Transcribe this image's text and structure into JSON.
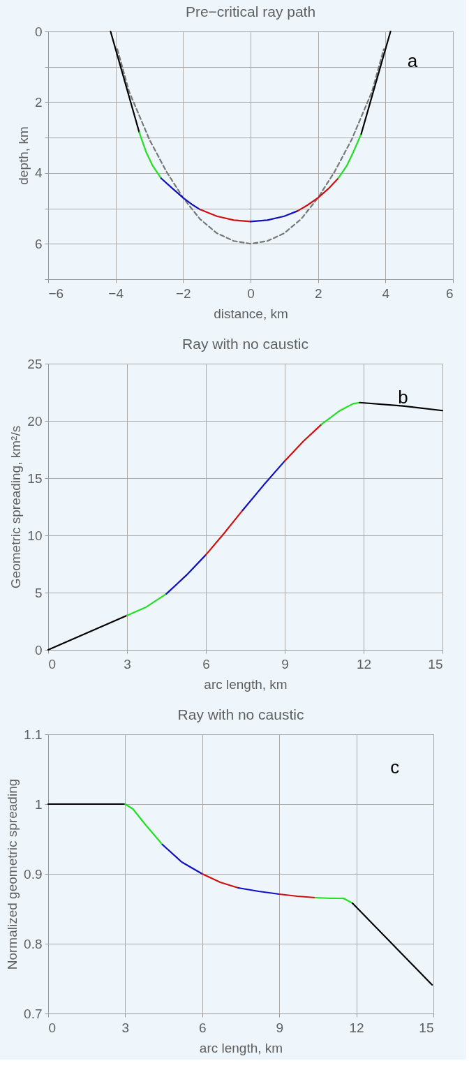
{
  "chart_data": [
    {
      "type": "line",
      "title": "Pre−critical ray path",
      "xlabel": "distance, km",
      "ylabel": "depth, km",
      "xlim": [
        -6,
        6
      ],
      "xticks": [
        -6,
        -4,
        -2,
        0,
        2,
        4,
        6
      ],
      "ylim": [
        7,
        0
      ],
      "yticks": [
        0,
        {
          "value": 1,
          "label": null
        },
        2,
        {
          "value": 3,
          "label": null
        },
        4,
        {
          "value": 5,
          "label": null
        },
        6,
        {
          "value": 7,
          "label": null
        }
      ],
      "grid": true,
      "line_style": "solid",
      "annotations": [
        "a"
      ],
      "series": [
        {
          "color": "#777777",
          "line_style": "dashed",
          "x": [
            -3.95,
            -3.6,
            -3.0,
            -2.5,
            -2.0,
            -1.5,
            -1.0,
            -0.5,
            0,
            0.5,
            1.0,
            1.5,
            2.0,
            2.5,
            3.0,
            3.6,
            3.95
          ],
          "values": [
            0.5,
            1.7,
            3.05,
            3.95,
            4.7,
            5.3,
            5.7,
            5.92,
            6.0,
            5.92,
            5.7,
            5.3,
            4.7,
            3.95,
            3.05,
            1.7,
            0.5
          ]
        },
        {
          "color": "#000000",
          "x": [
            -4.15,
            -3.3
          ],
          "values": [
            0,
            2.85
          ]
        },
        {
          "color": "#22e022",
          "x": [
            -3.3,
            -3.1,
            -2.9,
            -2.65
          ],
          "values": [
            2.85,
            3.4,
            3.8,
            4.15
          ]
        },
        {
          "color": "#1010c0",
          "x": [
            -2.65,
            -2.3,
            -2.0,
            -1.75,
            -1.5
          ],
          "values": [
            4.15,
            4.45,
            4.7,
            4.88,
            5.03
          ]
        },
        {
          "color": "#d01010",
          "x": [
            -1.5,
            -1.0,
            -0.5,
            0
          ],
          "values": [
            5.03,
            5.22,
            5.33,
            5.37
          ]
        },
        {
          "color": "#1010c0",
          "x": [
            0,
            0.5,
            1.0,
            1.4
          ],
          "values": [
            5.37,
            5.33,
            5.22,
            5.07
          ]
        },
        {
          "color": "#d01010",
          "x": [
            1.4,
            1.7,
            2.0,
            2.3,
            2.6
          ],
          "values": [
            5.07,
            4.9,
            4.7,
            4.45,
            4.15
          ]
        },
        {
          "color": "#22e022",
          "x": [
            2.6,
            2.85,
            3.05,
            3.28
          ],
          "values": [
            4.15,
            3.8,
            3.4,
            2.9
          ]
        },
        {
          "color": "#000000",
          "x": [
            3.28,
            4.15
          ],
          "values": [
            2.9,
            0
          ]
        }
      ]
    },
    {
      "type": "line",
      "title": "Ray with no caustic",
      "xlabel": "arc length, km",
      "ylabel": "Geometric spreading, km²/s",
      "xlim": [
        0,
        15
      ],
      "xticks": [
        0,
        3,
        6,
        9,
        12,
        15
      ],
      "ylim": [
        0,
        25
      ],
      "yticks": [
        0,
        5,
        10,
        15,
        20,
        25
      ],
      "grid": true,
      "line_style": "solid",
      "annotations": [
        "b"
      ],
      "series": [
        {
          "color": "#000000",
          "x": [
            0,
            3
          ],
          "values": [
            0,
            3
          ]
        },
        {
          "color": "#22e022",
          "x": [
            3,
            3.7,
            4.5
          ],
          "values": [
            3,
            3.7,
            4.9
          ]
        },
        {
          "color": "#1010c0",
          "x": [
            4.5,
            5.25,
            6
          ],
          "values": [
            4.9,
            6.5,
            8.3
          ]
        },
        {
          "color": "#d01010",
          "x": [
            6,
            6.7,
            7.4
          ],
          "values": [
            8.3,
            10.2,
            12.2
          ]
        },
        {
          "color": "#1010c0",
          "x": [
            7.4,
            8.2,
            9
          ],
          "values": [
            12.2,
            14.4,
            16.5
          ]
        },
        {
          "color": "#d01010",
          "x": [
            9,
            9.7,
            10.4
          ],
          "values": [
            16.5,
            18.2,
            19.7
          ]
        },
        {
          "color": "#22e022",
          "x": [
            10.4,
            11.1,
            11.6,
            11.85
          ],
          "values": [
            19.7,
            20.9,
            21.5,
            21.6
          ]
        },
        {
          "color": "#000000",
          "x": [
            11.85,
            13.5,
            15
          ],
          "values": [
            21.6,
            21.3,
            20.9
          ]
        }
      ]
    },
    {
      "type": "line",
      "title": "Ray with no caustic",
      "xlabel": "arc length, km",
      "ylabel": "Normalized geometric spreading",
      "xlim": [
        0,
        15
      ],
      "xticks": [
        0,
        3,
        6,
        9,
        12,
        15
      ],
      "ylim": [
        0.7,
        1.1
      ],
      "yticks": [
        0.7,
        0.8,
        0.9,
        1,
        1.1
      ],
      "grid": true,
      "line_style": "solid",
      "annotations": [
        "c"
      ],
      "series": [
        {
          "color": "#000000",
          "x": [
            0,
            1.5,
            3
          ],
          "values": [
            1.0,
            1.0,
            1.0
          ]
        },
        {
          "color": "#22e022",
          "x": [
            3,
            3.3,
            3.8,
            4.45
          ],
          "values": [
            1.0,
            0.993,
            0.97,
            0.942
          ]
        },
        {
          "color": "#1010c0",
          "x": [
            4.45,
            5.2,
            6
          ],
          "values": [
            0.942,
            0.917,
            0.9
          ]
        },
        {
          "color": "#d01010",
          "x": [
            6,
            6.7,
            7.4
          ],
          "values": [
            0.9,
            0.888,
            0.88
          ]
        },
        {
          "color": "#1010c0",
          "x": [
            7.4,
            8.2,
            9
          ],
          "values": [
            0.88,
            0.875,
            0.871
          ]
        },
        {
          "color": "#d01010",
          "x": [
            9,
            9.7,
            10.4
          ],
          "values": [
            0.871,
            0.868,
            0.866
          ]
        },
        {
          "color": "#22e022",
          "x": [
            10.4,
            11.0,
            11.5,
            11.85
          ],
          "values": [
            0.866,
            0.865,
            0.865,
            0.858
          ]
        },
        {
          "color": "#000000",
          "x": [
            11.85,
            14.95
          ],
          "values": [
            0.858,
            0.741
          ]
        }
      ]
    }
  ]
}
